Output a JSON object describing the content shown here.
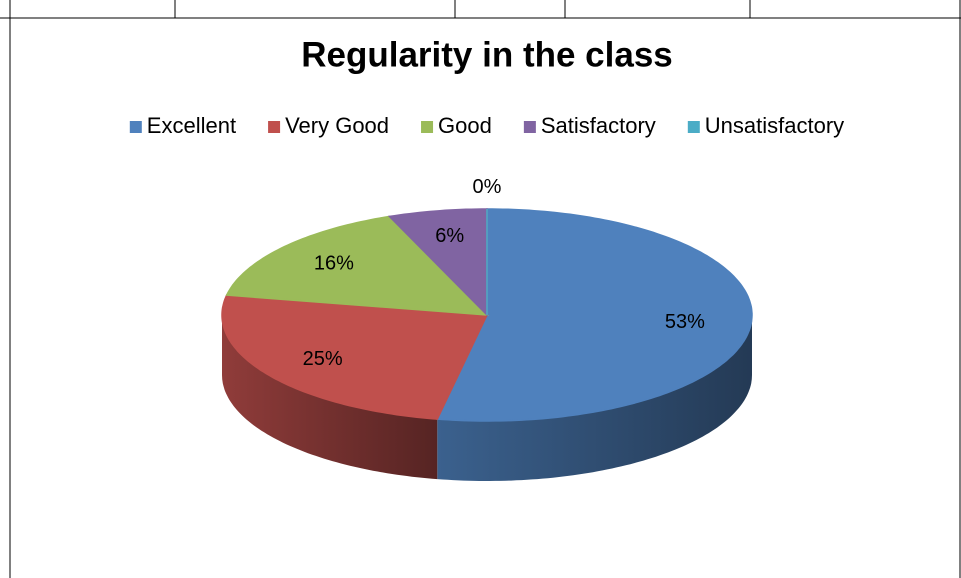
{
  "chart_data": {
    "type": "pie",
    "title": "Regularity in the class",
    "categories": [
      "Excellent",
      "Very Good",
      "Good",
      "Satisfactory",
      "Unsatisfactory"
    ],
    "values": [
      53,
      25,
      16,
      6,
      0
    ],
    "value_labels": [
      "53%",
      "25%",
      "16%",
      "6%",
      "0%"
    ],
    "colors": [
      "#4f81bd",
      "#c0504d",
      "#9bbb59",
      "#8064a2",
      "#4bacc6"
    ],
    "legend": "top"
  }
}
